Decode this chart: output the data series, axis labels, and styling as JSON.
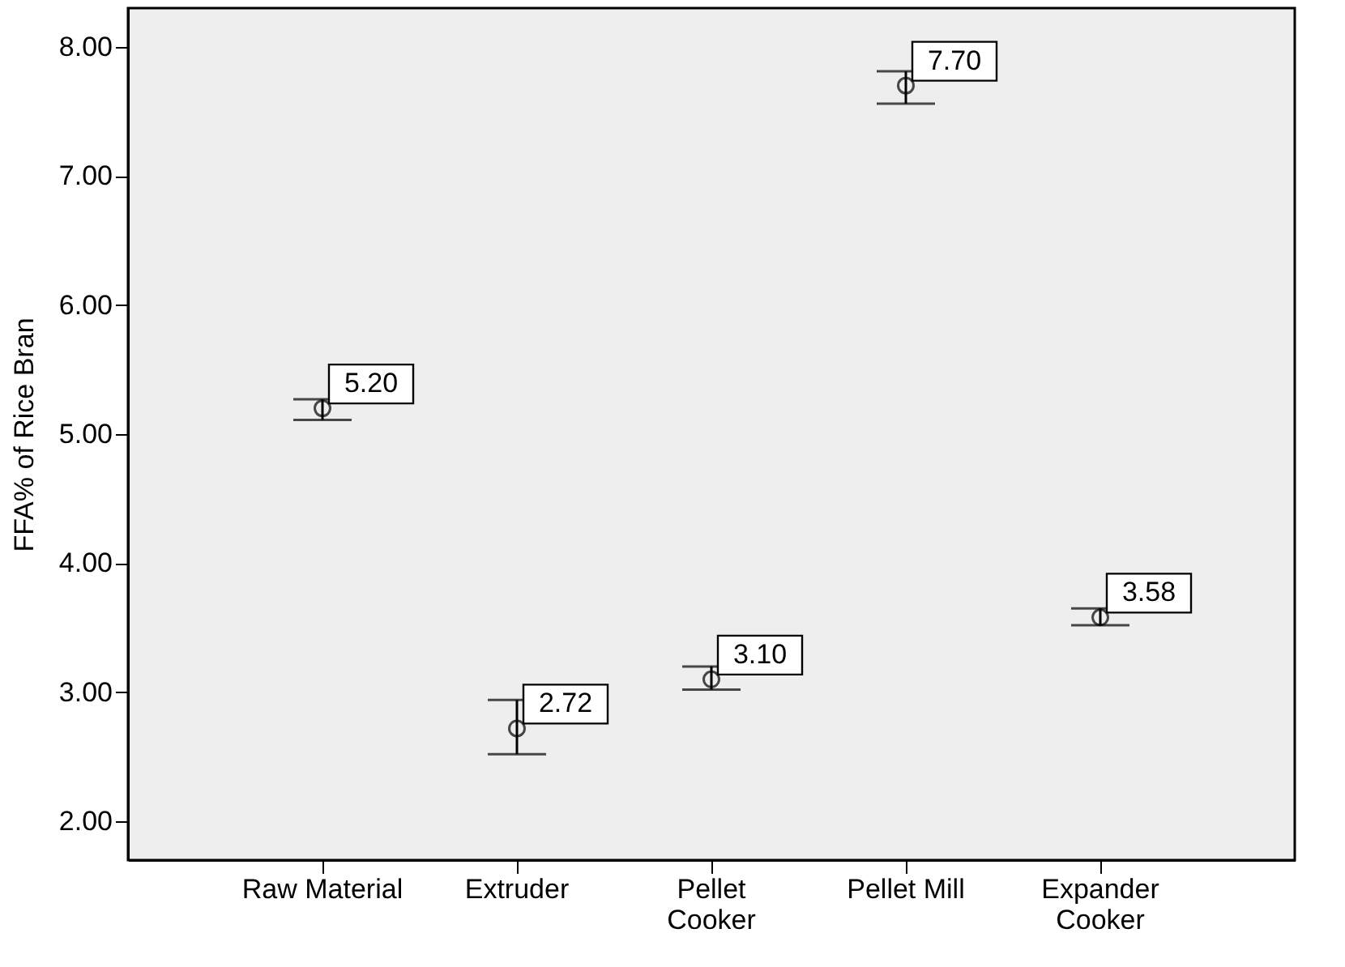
{
  "chart_data": {
    "type": "scatter",
    "ylabel": "FFA% of Rice Bran",
    "categories": [
      "Raw Material",
      "Extruder",
      "Pellet Cooker",
      "Pellet Mill",
      "Expander Cooker"
    ],
    "values": [
      5.2,
      2.72,
      3.1,
      7.7,
      3.58
    ],
    "errors": [
      [
        5.11,
        5.27
      ],
      [
        2.52,
        2.94
      ],
      [
        3.02,
        3.2
      ],
      [
        7.56,
        7.81
      ],
      [
        3.52,
        3.65
      ]
    ],
    "color": "#000000",
    "marker": "circle",
    "value_labels": [
      "5.20",
      "2.72",
      "3.10",
      "7.70",
      "3.58"
    ],
    "ylim": [
      1.7,
      8.3
    ],
    "yticks": [
      {
        "value": 2,
        "label": "2.00"
      },
      {
        "value": 3,
        "label": "3.00"
      },
      {
        "value": 4,
        "label": "4.00"
      },
      {
        "value": 5,
        "label": "5.00"
      },
      {
        "value": 6,
        "label": "6.00"
      },
      {
        "value": 7,
        "label": "7.00"
      },
      {
        "value": 8,
        "label": "8.00"
      }
    ],
    "grid": false
  }
}
